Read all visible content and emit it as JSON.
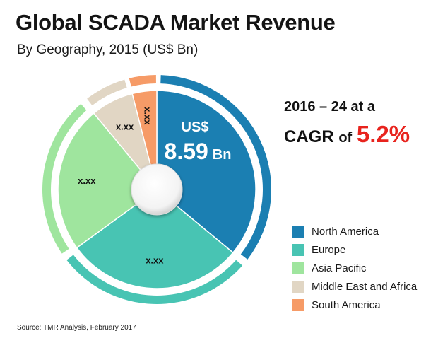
{
  "chart_data": {
    "type": "pie",
    "title": "Global SCADA Market Revenue",
    "subtitle": "By Geography, 2015 (US$ Bn)",
    "center_label": {
      "line1": "US$",
      "value": "8.59",
      "unit": "Bn"
    },
    "slices": [
      {
        "name": "North America",
        "value": 36,
        "label": "",
        "color": "#1b7fb2"
      },
      {
        "name": "Europe",
        "value": 29,
        "label": "x.xx",
        "color": "#48c4b3"
      },
      {
        "name": "Asia Pacific",
        "value": 24,
        "label": "x.xx",
        "color": "#9fe59e"
      },
      {
        "name": "Middle East and Africa",
        "value": 7,
        "label": "x.xx",
        "color": "#e1d6c4"
      },
      {
        "name": "South America",
        "value": 4,
        "label": "x.xx",
        "color": "#f69b67"
      }
    ],
    "legend_position": "right"
  },
  "callout": {
    "line1": "2016 – 24 at a",
    "prefix": "CAGR",
    "of": "of",
    "value": "5.2%"
  },
  "source": "Source: TMR Analysis, February 2017"
}
